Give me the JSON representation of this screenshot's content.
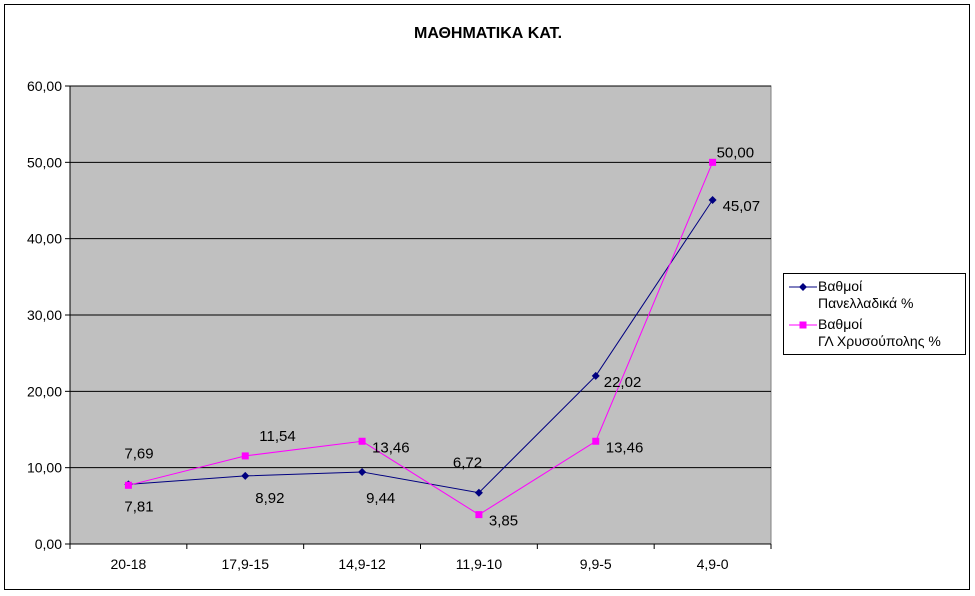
{
  "chart_data": {
    "type": "line",
    "title": "ΜΑΘΗΜΑΤΙΚΑ ΚΑΤ.",
    "xlabel": "",
    "ylabel": "",
    "categories": [
      "20-18",
      "17,9-15",
      "14,9-12",
      "11,9-10",
      "9,9-5",
      "4,9-0"
    ],
    "ylim": [
      0,
      60
    ],
    "yticks": [
      "0,00",
      "10,00",
      "20,00",
      "30,00",
      "40,00",
      "50,00",
      "60,00"
    ],
    "grid": true,
    "legend_position": "right",
    "plot_background": "#C0C0C0",
    "series": [
      {
        "name": "Βαθμοί Πανελλαδικά %",
        "name_lines": [
          "Βαθμοί",
          "Πανελλαδικά %"
        ],
        "color": "#000080",
        "marker": "diamond",
        "values": [
          7.81,
          8.92,
          9.44,
          6.72,
          22.02,
          45.07
        ],
        "labels": [
          "7,81",
          "8,92",
          "9,44",
          "6,72",
          "22,02",
          "45,07"
        ]
      },
      {
        "name": "Βαθμοί ΓΛ Χρυσούπολης %",
        "name_lines": [
          "Βαθμοί",
          "ΓΛ Χρυσούπολης %"
        ],
        "color": "#FF00FF",
        "marker": "square",
        "values": [
          7.69,
          11.54,
          13.46,
          3.85,
          13.46,
          50.0
        ],
        "labels": [
          "7,69",
          "11,54",
          "13,46",
          "3,85",
          "13,46",
          "50,00"
        ]
      }
    ]
  }
}
